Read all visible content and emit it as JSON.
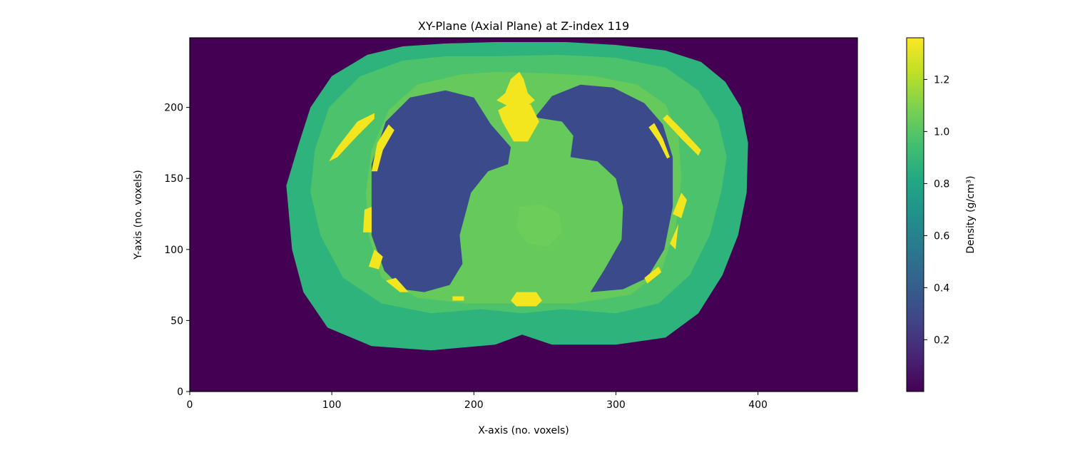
{
  "chart_data": {
    "type": "heatmap",
    "title": "XY-Plane (Axial Plane) at Z-index 119",
    "xlabel": "X-axis (no. voxels)",
    "ylabel": "Y-axis (no. voxels)",
    "xlim": [
      0,
      470
    ],
    "ylim": [
      0,
      249
    ],
    "x_ticks": [
      0,
      100,
      200,
      300,
      400
    ],
    "y_ticks": [
      0,
      50,
      100,
      150,
      200
    ],
    "colorbar": {
      "label": "Density (g/cm³)",
      "range": [
        0.001,
        1.36
      ],
      "ticks": [
        0.2,
        0.4,
        0.6,
        0.8,
        1.0,
        1.2
      ],
      "colormap": "viridis"
    },
    "colors": {
      "background_air": "#440154",
      "lung": "#3b4a8b",
      "fat": "#2eb37c",
      "soft_tissue": "#4cc26c",
      "muscle": "#66c95c",
      "heart_center": "#6ccd5a",
      "bone": "#f3e51e"
    },
    "regions": [
      {
        "name": "body-outline",
        "density_color": "fat",
        "points": [
          [
            77,
            175
          ],
          [
            85,
            200
          ],
          [
            100,
            222
          ],
          [
            125,
            237
          ],
          [
            150,
            243
          ],
          [
            180,
            245
          ],
          [
            215,
            246
          ],
          [
            265,
            246
          ],
          [
            300,
            244
          ],
          [
            335,
            240
          ],
          [
            360,
            232
          ],
          [
            377,
            218
          ],
          [
            388,
            200
          ],
          [
            393,
            175
          ],
          [
            392,
            140
          ],
          [
            386,
            110
          ],
          [
            375,
            82
          ],
          [
            358,
            55
          ],
          [
            335,
            38
          ],
          [
            300,
            33
          ],
          [
            255,
            33
          ],
          [
            234,
            40
          ],
          [
            215,
            33
          ],
          [
            170,
            29
          ],
          [
            128,
            32
          ],
          [
            97,
            45
          ],
          [
            80,
            70
          ],
          [
            72,
            100
          ],
          [
            68,
            145
          ]
        ]
      },
      {
        "name": "muscle-band",
        "density_color": "soft_tissue",
        "points": [
          [
            88,
            170
          ],
          [
            98,
            200
          ],
          [
            120,
            222
          ],
          [
            150,
            233
          ],
          [
            180,
            236
          ],
          [
            215,
            236
          ],
          [
            260,
            237
          ],
          [
            300,
            235
          ],
          [
            335,
            228
          ],
          [
            358,
            212
          ],
          [
            372,
            190
          ],
          [
            378,
            165
          ],
          [
            374,
            140
          ],
          [
            366,
            110
          ],
          [
            352,
            82
          ],
          [
            330,
            62
          ],
          [
            300,
            55
          ],
          [
            262,
            58
          ],
          [
            234,
            55
          ],
          [
            205,
            58
          ],
          [
            170,
            55
          ],
          [
            135,
            62
          ],
          [
            108,
            80
          ],
          [
            92,
            110
          ],
          [
            85,
            140
          ]
        ]
      },
      {
        "name": "chest-wall",
        "density_color": "muscle",
        "points": [
          [
            128,
            170
          ],
          [
            140,
            198
          ],
          [
            160,
            216
          ],
          [
            190,
            223
          ],
          [
            215,
            225
          ],
          [
            250,
            224
          ],
          [
            285,
            222
          ],
          [
            315,
            216
          ],
          [
            335,
            202
          ],
          [
            344,
            180
          ],
          [
            346,
            150
          ],
          [
            342,
            115
          ],
          [
            332,
            85
          ],
          [
            310,
            68
          ],
          [
            270,
            62
          ],
          [
            234,
            62
          ],
          [
            195,
            62
          ],
          [
            160,
            66
          ],
          [
            135,
            80
          ],
          [
            126,
            110
          ],
          [
            124,
            140
          ]
        ]
      },
      {
        "name": "left-lung",
        "density_color": "lung",
        "points": [
          [
            128,
            110
          ],
          [
            128,
            160
          ],
          [
            138,
            190
          ],
          [
            155,
            207
          ],
          [
            180,
            212
          ],
          [
            200,
            207
          ],
          [
            212,
            188
          ],
          [
            226,
            172
          ],
          [
            224,
            160
          ],
          [
            210,
            155
          ],
          [
            198,
            140
          ],
          [
            190,
            110
          ],
          [
            192,
            90
          ],
          [
            183,
            75
          ],
          [
            165,
            70
          ],
          [
            150,
            72
          ],
          [
            137,
            85
          ]
        ]
      },
      {
        "name": "right-lung",
        "density_color": "lung",
        "points": [
          [
            243,
            193
          ],
          [
            255,
            208
          ],
          [
            275,
            216
          ],
          [
            298,
            214
          ],
          [
            320,
            203
          ],
          [
            333,
            188
          ],
          [
            340,
            165
          ],
          [
            340,
            130
          ],
          [
            334,
            100
          ],
          [
            322,
            80
          ],
          [
            305,
            72
          ],
          [
            282,
            70
          ],
          [
            292,
            86
          ],
          [
            304,
            107
          ],
          [
            305,
            130
          ],
          [
            300,
            150
          ],
          [
            287,
            162
          ],
          [
            268,
            165
          ],
          [
            270,
            180
          ],
          [
            262,
            190
          ]
        ]
      },
      {
        "name": "heart",
        "density_color": "muscle",
        "points": [
          [
            208,
            140
          ],
          [
            215,
            152
          ],
          [
            232,
            156
          ],
          [
            255,
            156
          ],
          [
            276,
            150
          ],
          [
            290,
            138
          ],
          [
            298,
            118
          ],
          [
            296,
            97
          ],
          [
            286,
            82
          ],
          [
            265,
            77
          ],
          [
            242,
            77
          ],
          [
            222,
            82
          ],
          [
            209,
            95
          ],
          [
            205,
            118
          ]
        ]
      },
      {
        "name": "heart-inner",
        "density_color": "heart_center",
        "points": [
          [
            232,
            130
          ],
          [
            248,
            132
          ],
          [
            260,
            125
          ],
          [
            262,
            112
          ],
          [
            252,
            102
          ],
          [
            238,
            104
          ],
          [
            230,
            115
          ]
        ]
      },
      {
        "name": "aorta",
        "density_color": "muscle",
        "cx": 251,
        "cy": 174,
        "r": 12
      },
      {
        "name": "sternum-top",
        "density_color": "bone",
        "points": [
          [
            216,
            205
          ],
          [
            222,
            210
          ],
          [
            226,
            220
          ],
          [
            232,
            225
          ],
          [
            235,
            220
          ],
          [
            238,
            210
          ],
          [
            243,
            205
          ],
          [
            236,
            200
          ],
          [
            226,
            200
          ]
        ]
      },
      {
        "name": "sternum-body",
        "density_color": "bone",
        "points": [
          [
            217,
            198
          ],
          [
            220,
            190
          ],
          [
            228,
            176
          ],
          [
            238,
            176
          ],
          [
            246,
            190
          ],
          [
            240,
            202
          ],
          [
            224,
            202
          ]
        ]
      },
      {
        "name": "vertebra",
        "density_color": "bone",
        "points": [
          [
            226,
            64
          ],
          [
            230,
            70
          ],
          [
            244,
            70
          ],
          [
            248,
            64
          ],
          [
            244,
            60
          ],
          [
            230,
            60
          ]
        ]
      },
      {
        "name": "rib-1",
        "density_color": "bone",
        "points": [
          [
            98,
            162
          ],
          [
            104,
            172
          ],
          [
            118,
            190
          ],
          [
            130,
            196
          ],
          [
            130,
            192
          ],
          [
            118,
            180
          ],
          [
            104,
            165
          ]
        ]
      },
      {
        "name": "rib-2",
        "density_color": "bone",
        "points": [
          [
            128,
            155
          ],
          [
            132,
            175
          ],
          [
            140,
            188
          ],
          [
            144,
            184
          ],
          [
            136,
            170
          ],
          [
            132,
            155
          ]
        ]
      },
      {
        "name": "rib-3",
        "density_color": "bone",
        "points": [
          [
            122,
            112
          ],
          [
            123,
            128
          ],
          [
            128,
            130
          ],
          [
            128,
            112
          ]
        ]
      },
      {
        "name": "rib-4",
        "density_color": "bone",
        "points": [
          [
            126,
            88
          ],
          [
            130,
            100
          ],
          [
            136,
            95
          ],
          [
            133,
            86
          ]
        ]
      },
      {
        "name": "rib-5",
        "density_color": "bone",
        "points": [
          [
            138,
            78
          ],
          [
            148,
            70
          ],
          [
            154,
            70
          ],
          [
            145,
            80
          ]
        ]
      },
      {
        "name": "rib-6",
        "density_color": "bone",
        "points": [
          [
            322,
            76
          ],
          [
            332,
            84
          ],
          [
            330,
            88
          ],
          [
            320,
            80
          ]
        ]
      },
      {
        "name": "rib-7",
        "density_color": "bone",
        "points": [
          [
            338,
            104
          ],
          [
            344,
            118
          ],
          [
            342,
            100
          ]
        ]
      },
      {
        "name": "rib-8",
        "density_color": "bone",
        "points": [
          [
            340,
            125
          ],
          [
            346,
            140
          ],
          [
            350,
            135
          ],
          [
            346,
            122
          ]
        ]
      },
      {
        "name": "rib-9",
        "density_color": "bone",
        "points": [
          [
            323,
            186
          ],
          [
            330,
            176
          ],
          [
            336,
            164
          ],
          [
            338,
            165
          ],
          [
            333,
            178
          ],
          [
            327,
            189
          ]
        ]
      },
      {
        "name": "rib-10",
        "density_color": "bone",
        "points": [
          [
            333,
            192
          ],
          [
            346,
            178
          ],
          [
            358,
            166
          ],
          [
            360,
            170
          ],
          [
            347,
            184
          ],
          [
            336,
            195
          ]
        ]
      },
      {
        "name": "bone-fragment",
        "density_color": "bone",
        "points": [
          [
            185,
            64
          ],
          [
            193,
            64
          ],
          [
            193,
            67
          ],
          [
            185,
            67
          ]
        ]
      }
    ]
  }
}
